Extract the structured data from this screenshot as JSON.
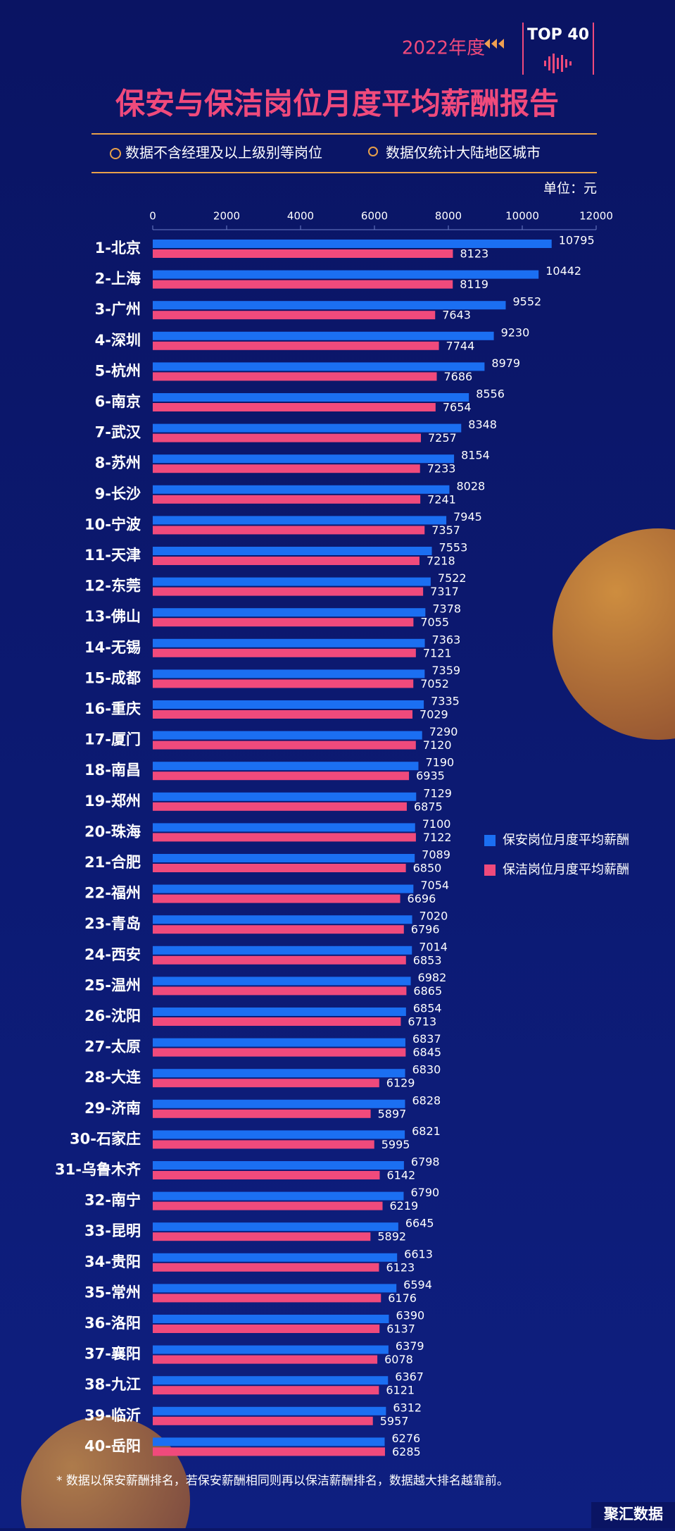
{
  "chart_data": {
    "type": "bar",
    "orientation": "horizontal",
    "subtitle": "2022年度",
    "badge": "TOP 40",
    "title": "保安与保洁岗位月度平均薪酬报告",
    "notes": [
      "数据不含经理及以上级别等岗位",
      "数据仅统计大陆地区城市"
    ],
    "unit": "单位：元",
    "categories": [
      "1-北京",
      "2-上海",
      "3-广州",
      "4-深圳",
      "5-杭州",
      "6-南京",
      "7-武汉",
      "8-苏州",
      "9-长沙",
      "10-宁波",
      "11-天津",
      "12-东莞",
      "13-佛山",
      "14-无锡",
      "15-成都",
      "16-重庆",
      "17-厦门",
      "18-南昌",
      "19-郑州",
      "20-珠海",
      "21-合肥",
      "22-福州",
      "23-青岛",
      "24-西安",
      "25-温州",
      "26-沈阳",
      "27-太原",
      "28-大连",
      "29-济南",
      "30-石家庄",
      "31-乌鲁木齐",
      "32-南宁",
      "33-昆明",
      "34-贵阳",
      "35-常州",
      "36-洛阳",
      "37-襄阳",
      "38-九江",
      "39-临沂",
      "40-岳阳"
    ],
    "series": [
      {
        "name": "保安岗位月度平均薪酬",
        "color": "#1b6ff2",
        "values": [
          10795,
          10442,
          9552,
          9230,
          8979,
          8556,
          8348,
          8154,
          8028,
          7945,
          7553,
          7522,
          7378,
          7363,
          7359,
          7335,
          7290,
          7190,
          7129,
          7100,
          7089,
          7054,
          7020,
          7014,
          6982,
          6854,
          6837,
          6830,
          6828,
          6821,
          6798,
          6790,
          6645,
          6613,
          6594,
          6390,
          6379,
          6367,
          6312,
          6276
        ]
      },
      {
        "name": "保洁岗位月度平均薪酬",
        "color": "#f04a7c",
        "values": [
          8123,
          8119,
          7643,
          7744,
          7686,
          7654,
          7257,
          7233,
          7241,
          7357,
          7218,
          7317,
          7055,
          7121,
          7052,
          7029,
          7120,
          6935,
          6875,
          7122,
          6850,
          6696,
          6796,
          6853,
          6865,
          6713,
          6845,
          6129,
          5897,
          5995,
          6142,
          6219,
          5892,
          6123,
          6176,
          6137,
          6078,
          6121,
          5957,
          6285
        ]
      }
    ],
    "xlim": [
      0,
      12000
    ],
    "xticks": [
      0,
      2000,
      4000,
      6000,
      8000,
      10000,
      12000
    ],
    "grid": false,
    "legend": "right",
    "footnote": "* 数据以保安薪酬排名，若保安薪酬相同则再以保洁薪酬排名，数据越大排名越靠前。"
  },
  "watermark": "聚汇数据"
}
